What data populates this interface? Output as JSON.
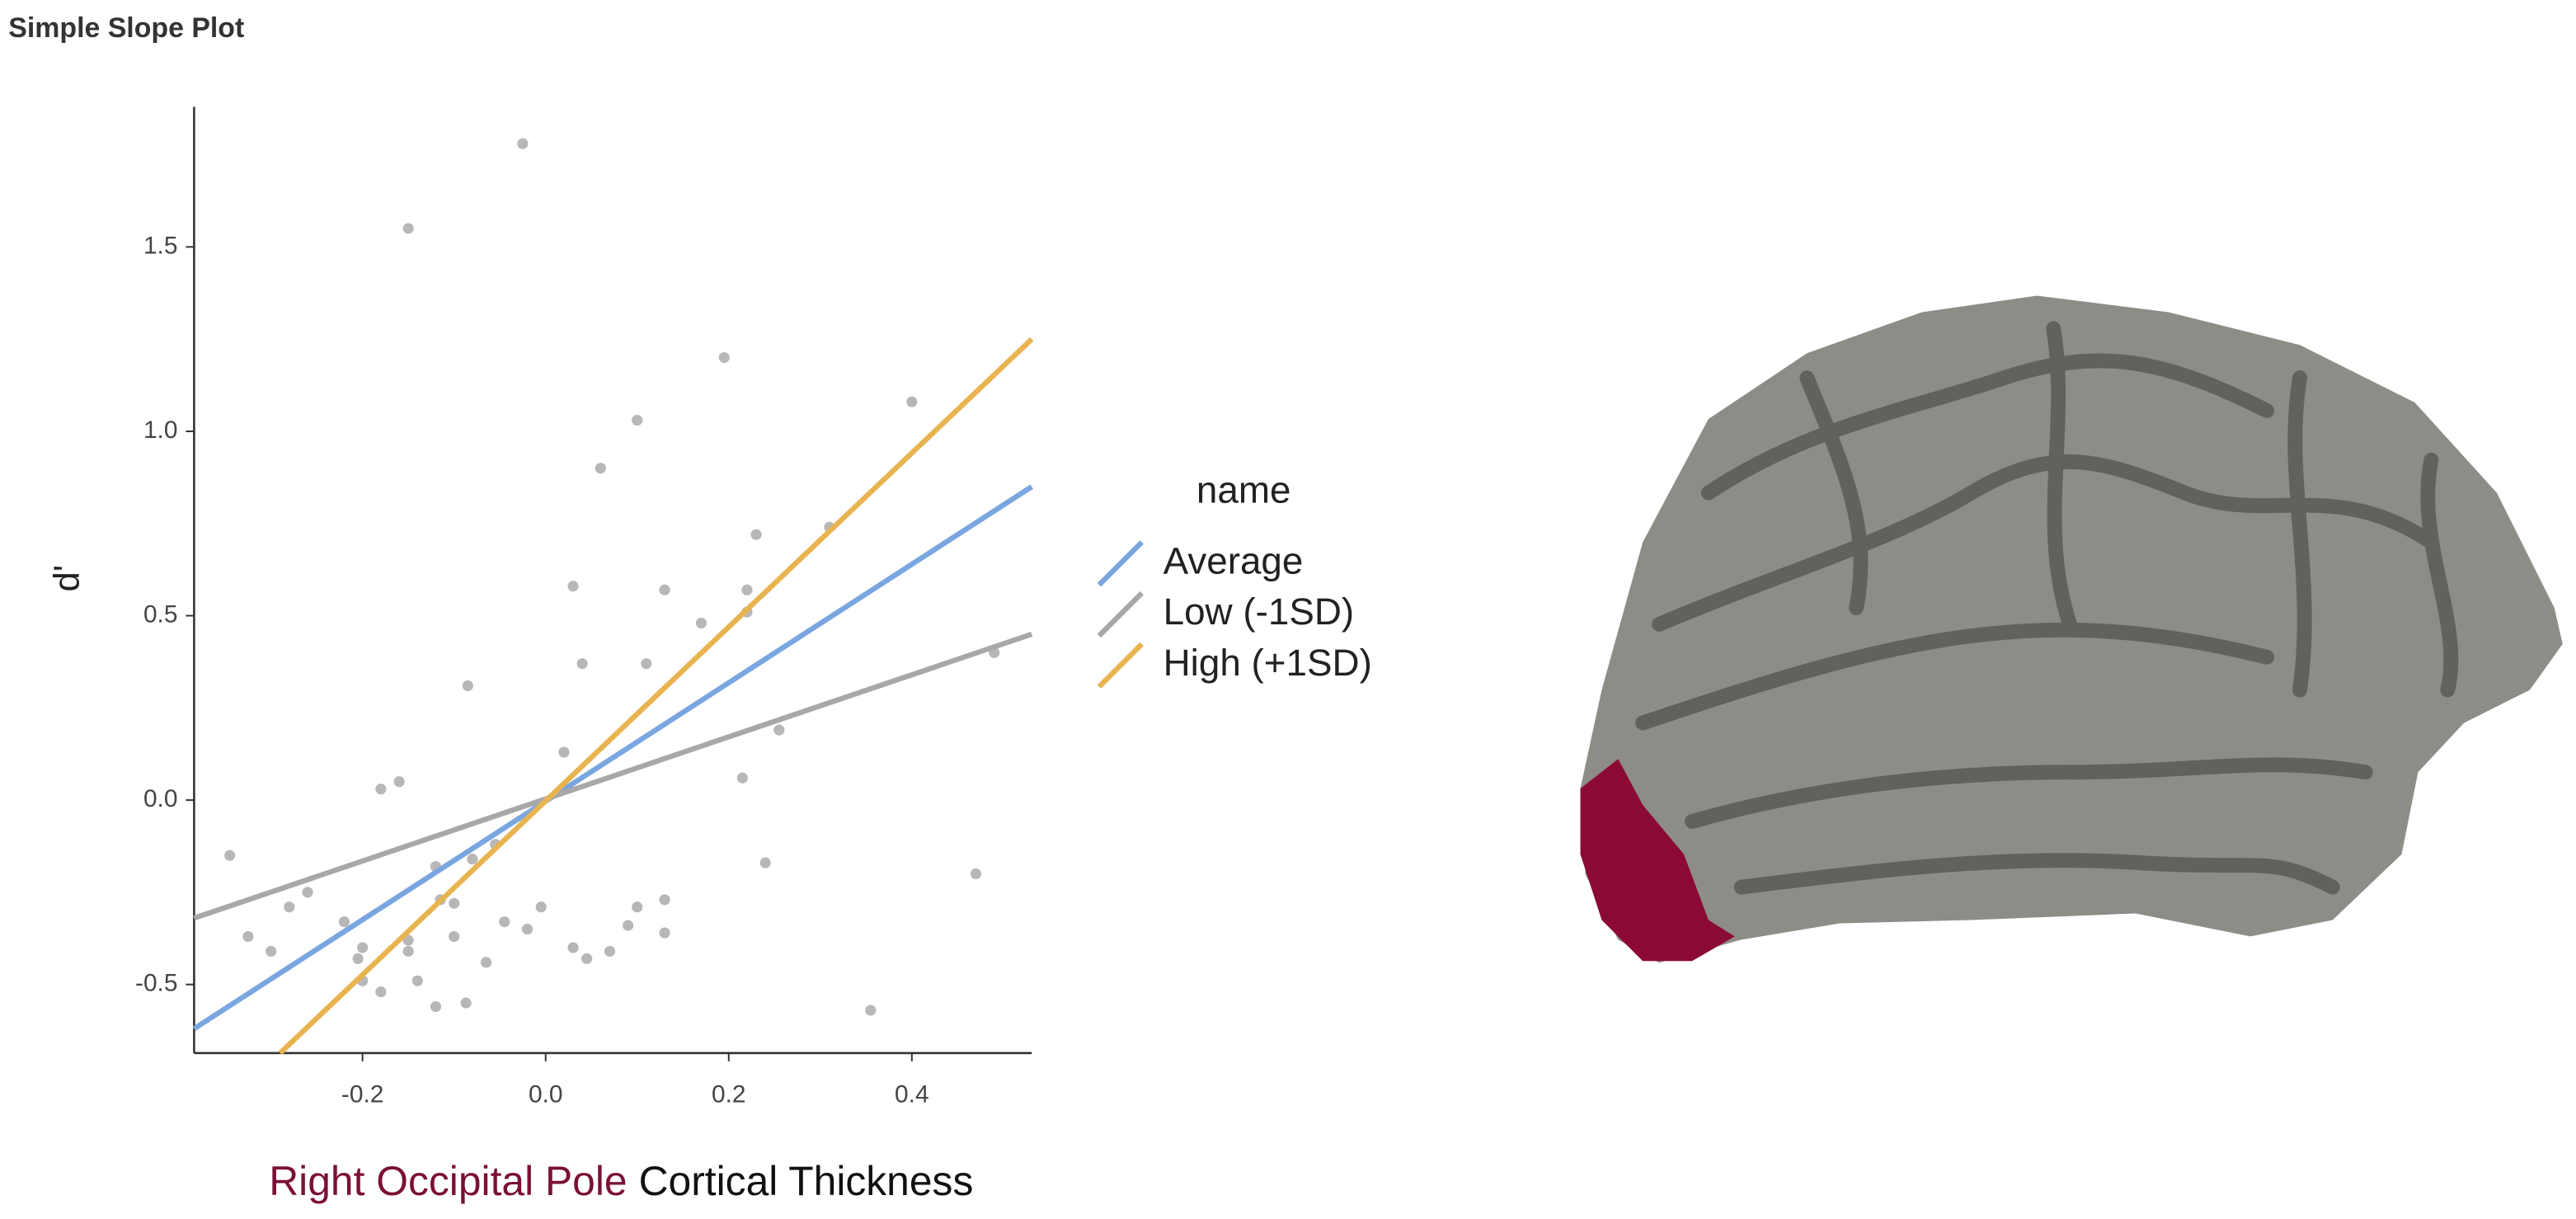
{
  "chart_data": {
    "type": "line",
    "title": "Simple Slope Plot",
    "xlabel_highlight": "Right Occipital Pole",
    "xlabel": "Cortical Thickness",
    "ylabel": "d'",
    "legend_title": "name",
    "xlim": [
      -0.384,
      0.531
    ],
    "ylim": [
      -0.686,
      1.88
    ],
    "xticks": [
      -0.2,
      {
        "value": 0,
        "label": "0.0"
      },
      0.2,
      0.4
    ],
    "yticks": [
      -0.5,
      {
        "value": 0,
        "label": "0.0"
      },
      0.5,
      {
        "value": 1,
        "label": "1.0"
      },
      1.5
    ],
    "grid": false,
    "series": [
      {
        "name": "Average",
        "color": "#7aa6e0",
        "x": [
          -0.384,
          0.531
        ],
        "values": [
          -0.62,
          0.85
        ]
      },
      {
        "name": "Low (-1SD)",
        "color": "#a8a8a8",
        "x": [
          -0.384,
          0.531
        ],
        "values": [
          -0.32,
          0.45
        ]
      },
      {
        "name": "High (+1SD)",
        "color": "#e8b450",
        "x": [
          -0.29,
          0.531
        ],
        "values": [
          -0.686,
          1.25
        ]
      }
    ],
    "points": {
      "color": "#aaaaaa",
      "x": [
        -0.025,
        -0.15,
        0.195,
        0.1,
        0.4,
        0.06,
        0.23,
        0.31,
        0.03,
        0.13,
        0.22,
        0.22,
        0.17,
        0.04,
        0.11,
        0.49,
        -0.085,
        0.255,
        0.02,
        0.215,
        -0.16,
        -0.18,
        -0.345,
        -0.055,
        0.24,
        0.47,
        -0.12,
        -0.08,
        -0.26,
        -0.28,
        -0.115,
        -0.1,
        -0.005,
        0.1,
        0.13,
        -0.325,
        -0.22,
        -0.045,
        -0.02,
        0.09,
        0.13,
        -0.3,
        -0.2,
        -0.15,
        -0.205,
        -0.15,
        -0.1,
        0.03,
        0.045,
        0.07,
        -0.065,
        -0.2,
        -0.14,
        -0.18,
        -0.12,
        -0.087,
        0.355
      ],
      "values": [
        1.78,
        1.55,
        1.2,
        1.03,
        1.08,
        0.9,
        0.72,
        0.74,
        0.58,
        0.57,
        0.57,
        0.51,
        0.48,
        0.37,
        0.37,
        0.4,
        0.31,
        0.19,
        0.13,
        0.06,
        0.05,
        0.03,
        -0.15,
        -0.12,
        -0.17,
        -0.2,
        -0.18,
        -0.16,
        -0.25,
        -0.29,
        -0.27,
        -0.28,
        -0.29,
        -0.29,
        -0.27,
        -0.37,
        -0.33,
        -0.33,
        -0.35,
        -0.34,
        -0.36,
        -0.41,
        -0.4,
        -0.38,
        -0.43,
        -0.41,
        -0.37,
        -0.4,
        -0.43,
        -0.41,
        -0.44,
        -0.49,
        -0.49,
        -0.52,
        -0.56,
        -0.55,
        -0.57
      ]
    }
  }
}
